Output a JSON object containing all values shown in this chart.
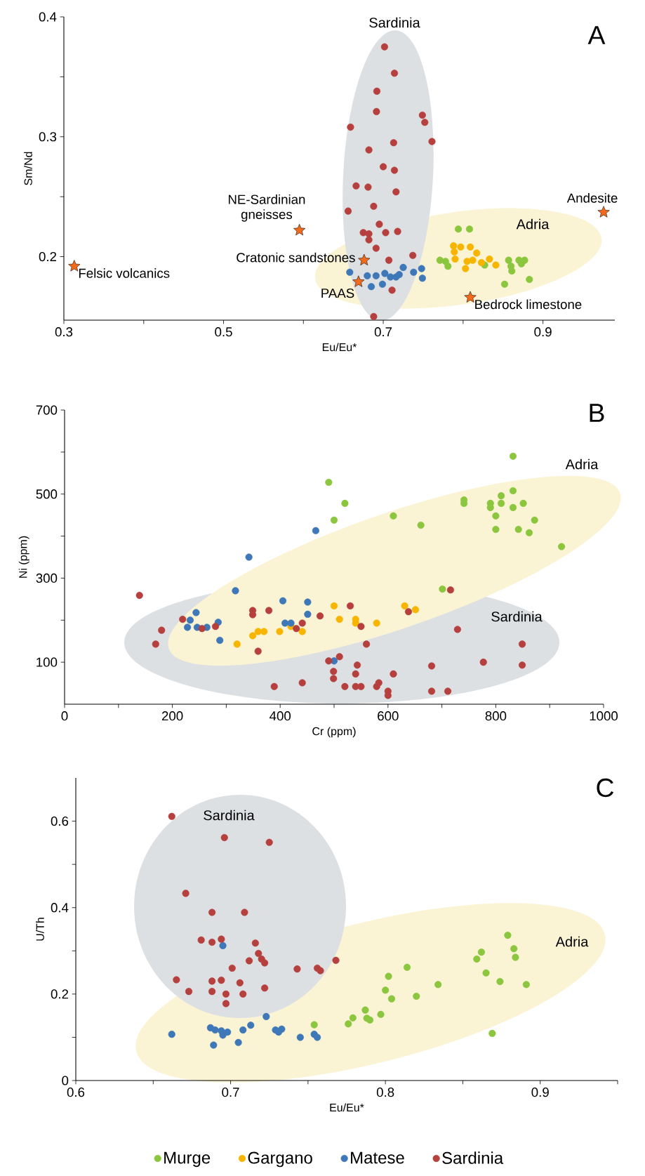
{
  "chart_data": [
    {
      "type": "scatter",
      "title": "A",
      "xlabel": "Eu/Eu*",
      "ylabel": "Sm/Nd",
      "xlim": [
        0.3,
        0.99
      ],
      "ylim": [
        0.147,
        0.4
      ],
      "marker": "circle",
      "xticks": [
        0.3,
        {
          "value": 0.4,
          "label": null
        },
        0.5,
        {
          "value": 0.6,
          "label": null
        },
        0.7,
        {
          "value": 0.8,
          "label": null
        },
        0.9
      ],
      "yticks": [
        0.2,
        {
          "value": 0.25,
          "label": null
        },
        0.3,
        {
          "value": 0.35,
          "label": null
        },
        0.4
      ],
      "series": [
        {
          "color": "#3f78b8",
          "x": [
            0.658,
            0.68,
            0.685,
            0.691,
            0.702,
            0.699,
            0.709,
            0.72,
            0.725,
            0.738,
            0.748,
            0.749,
            0.716
          ],
          "values": [
            0.187,
            0.184,
            0.175,
            0.184,
            0.186,
            0.177,
            0.183,
            0.185,
            0.191,
            0.187,
            0.19,
            0.182,
            0.183
          ]
        },
        {
          "color": "#b5403e",
          "x": [
            0.7016,
            0.714,
            0.692,
            0.6915,
            0.659,
            0.749,
            0.752,
            0.761,
            0.713,
            0.682,
            0.7,
            0.714,
            0.666,
            0.681,
            0.716,
            0.688,
            0.656,
            0.695,
            0.675,
            0.682,
            0.703,
            0.718,
            0.682,
            0.691,
            0.737,
            0.707,
            0.711,
            0.688
          ],
          "values": [
            0.375,
            0.353,
            0.338,
            0.321,
            0.308,
            0.318,
            0.312,
            0.296,
            0.295,
            0.289,
            0.275,
            0.272,
            0.259,
            0.258,
            0.254,
            0.242,
            0.238,
            0.227,
            0.22,
            0.219,
            0.22,
            0.221,
            0.214,
            0.207,
            0.201,
            0.197,
            0.172,
            0.15
          ]
        },
        {
          "color": "#8cc63f",
          "x": [
            0.794,
            0.808,
            0.771,
            0.778,
            0.781,
            0.827,
            0.857,
            0.86,
            0.861,
            0.87,
            0.877,
            0.873,
            0.852,
            0.883
          ],
          "values": [
            0.223,
            0.223,
            0.197,
            0.196,
            0.192,
            0.193,
            0.197,
            0.192,
            0.188,
            0.197,
            0.197,
            0.194,
            0.177,
            0.181
          ]
        },
        {
          "color": "#f7b500",
          "x": [
            0.788,
            0.789,
            0.797,
            0.809,
            0.817,
            0.79,
            0.805,
            0.812,
            0.823,
            0.833,
            0.841,
            0.803
          ],
          "values": [
            0.209,
            0.204,
            0.208,
            0.208,
            0.203,
            0.198,
            0.196,
            0.197,
            0.195,
            0.198,
            0.193,
            0.19
          ]
        },
        {
          "color": "#f26b1d",
          "marker": "star",
          "x": [
            0.313,
            0.595,
            0.676,
            0.669,
            0.809,
            0.976
          ],
          "values": [
            0.192,
            0.222,
            0.197,
            0.179,
            0.166,
            0.237
          ]
        }
      ],
      "annotations": [
        {
          "text": "Felsic volcanics",
          "x": 0.313,
          "y": 0.192
        },
        {
          "text": "NE-Sardinian gneisses",
          "x": 0.595,
          "y": 0.222
        },
        {
          "text": "Cratonic sandstones",
          "x": 0.676,
          "y": 0.197
        },
        {
          "text": "PAAS",
          "x": 0.669,
          "y": 0.179
        },
        {
          "text": "Bedrock limestone",
          "x": 0.809,
          "y": 0.166
        },
        {
          "text": "Andesite",
          "x": 0.976,
          "y": 0.237
        },
        "Sardinia",
        "Adria"
      ]
    },
    {
      "type": "scatter",
      "title": "B",
      "xlabel": "Cr (ppm)",
      "ylabel": "Ni (ppm)",
      "xlim": [
        0,
        1000
      ],
      "ylim": [
        0,
        700
      ],
      "marker": "circle",
      "legend": "bottom",
      "xticks": [
        0,
        {
          "value": 100,
          "label": null
        },
        200,
        {
          "value": 300,
          "label": null
        },
        400,
        {
          "value": 500,
          "label": null
        },
        600,
        {
          "value": 700,
          "label": null
        },
        800,
        {
          "value": 900,
          "label": null
        },
        1000
      ],
      "yticks": [
        100,
        {
          "value": 200,
          "label": null
        },
        300,
        {
          "value": 400,
          "label": null
        },
        500,
        {
          "value": 600,
          "label": null
        },
        700
      ],
      "series": [
        {
          "name": "Murge",
          "color": "#8cc63f",
          "x": [
            490,
            500,
            520,
            610,
            661,
            701,
            741,
            741,
            790,
            790,
            810,
            810,
            800,
            800,
            832,
            832,
            832,
            851,
            842,
            862,
            872,
            922
          ],
          "values": [
            528,
            438,
            478,
            448,
            426,
            274,
            486,
            478,
            478,
            468,
            496,
            478,
            448,
            416,
            590,
            508,
            468,
            478,
            416,
            408,
            438,
            375
          ]
        },
        {
          "name": "Gargano",
          "color": "#f7b500",
          "x": [
            320,
            349,
            359,
            370,
            399,
            420,
            441,
            500,
            510,
            540,
            540,
            579,
            631,
            651
          ],
          "values": [
            143,
            163,
            173,
            173,
            173,
            185,
            173,
            234,
            202,
            202,
            193,
            193,
            234,
            225
          ]
        },
        {
          "name": "Matese",
          "color": "#3f78b8",
          "x": [
            466,
            342,
            317,
            405,
            451,
            451,
            244,
            233,
            228,
            246,
            264,
            285,
            288,
            409,
            420,
            500
          ],
          "values": [
            413,
            350,
            270,
            246,
            243,
            214,
            218,
            200,
            183,
            183,
            183,
            195,
            152,
            193,
            193,
            103
          ]
        },
        {
          "name": "Sardinia",
          "color": "#b5403e",
          "x": [
            139,
            180,
            169,
            219,
            255,
            280,
            349,
            349,
            379,
            359,
            389,
            430,
            441,
            441,
            474,
            490,
            510,
            499,
            499,
            520,
            530,
            543,
            540,
            540,
            550,
            550,
            560,
            579,
            583,
            600,
            600,
            610,
            638,
            681,
            681,
            716,
            711,
            729,
            777,
            849,
            849
          ],
          "values": [
            259,
            176,
            143,
            202,
            180,
            185,
            223,
            213,
            223,
            126,
            42,
            180,
            193,
            51,
            210,
            103,
            113,
            78,
            61,
            42,
            234,
            93,
            72,
            42,
            42,
            185,
            143,
            42,
            51,
            31,
            21,
            72,
            220,
            91,
            31,
            272,
            31,
            178,
            100,
            143,
            93
          ]
        }
      ],
      "annotations": [
        "Adria",
        "Sardinia"
      ]
    },
    {
      "type": "scatter",
      "title": "C",
      "xlabel": "Eu/Eu*",
      "ylabel": "U/Th",
      "xlim": [
        0.6,
        0.95
      ],
      "ylim": [
        0,
        0.7
      ],
      "marker": "circle",
      "xticks": [
        0.6,
        {
          "value": 0.65,
          "label": null
        },
        0.7,
        {
          "value": 0.75,
          "label": null
        },
        0.8,
        {
          "value": 0.85,
          "label": null
        },
        0.9,
        {
          "value": 0.95,
          "label": null
        }
      ],
      "yticks": [
        0,
        {
          "value": 0.1,
          "label": null
        },
        0.2,
        {
          "value": 0.3,
          "label": null
        },
        0.4,
        {
          "value": 0.5,
          "label": null
        },
        0.6
      ],
      "series": [
        {
          "color": "#8cc63f",
          "x": [
            0.754,
            0.776,
            0.779,
            0.787,
            0.788,
            0.79,
            0.797,
            0.8,
            0.802,
            0.804,
            0.814,
            0.82,
            0.834,
            0.859,
            0.862,
            0.865,
            0.874,
            0.879,
            0.883,
            0.884,
            0.891,
            0.869
          ],
          "values": [
            0.129,
            0.131,
            0.145,
            0.163,
            0.144,
            0.14,
            0.153,
            0.209,
            0.241,
            0.189,
            0.262,
            0.195,
            0.222,
            0.281,
            0.297,
            0.249,
            0.229,
            0.336,
            0.305,
            0.285,
            0.222,
            0.109
          ]
        },
        {
          "color": "#3f78b8",
          "x": [
            0.695,
            0.662,
            0.687,
            0.69,
            0.694,
            0.695,
            0.698,
            0.689,
            0.705,
            0.708,
            0.713,
            0.723,
            0.729,
            0.731,
            0.733,
            0.745,
            0.754,
            0.756
          ],
          "values": [
            0.312,
            0.107,
            0.122,
            0.117,
            0.115,
            0.105,
            0.112,
            0.082,
            0.088,
            0.117,
            0.128,
            0.148,
            0.117,
            0.112,
            0.119,
            0.1,
            0.107,
            0.1
          ]
        },
        {
          "color": "#b5403e",
          "x": [
            0.662,
            0.696,
            0.725,
            0.671,
            0.688,
            0.709,
            0.681,
            0.688,
            0.694,
            0.716,
            0.718,
            0.72,
            0.722,
            0.712,
            0.701,
            0.743,
            0.756,
            0.758,
            0.768,
            0.665,
            0.688,
            0.694,
            0.706,
            0.673,
            0.688,
            0.697,
            0.708,
            0.722,
            0.697
          ],
          "values": [
            0.611,
            0.562,
            0.551,
            0.433,
            0.389,
            0.389,
            0.325,
            0.32,
            0.327,
            0.318,
            0.294,
            0.281,
            0.272,
            0.277,
            0.26,
            0.258,
            0.26,
            0.254,
            0.278,
            0.233,
            0.23,
            0.232,
            0.226,
            0.206,
            0.206,
            0.2,
            0.2,
            0.214,
            0.178
          ]
        }
      ],
      "annotations": [
        "Sardinia",
        "Adria"
      ]
    }
  ]
}
